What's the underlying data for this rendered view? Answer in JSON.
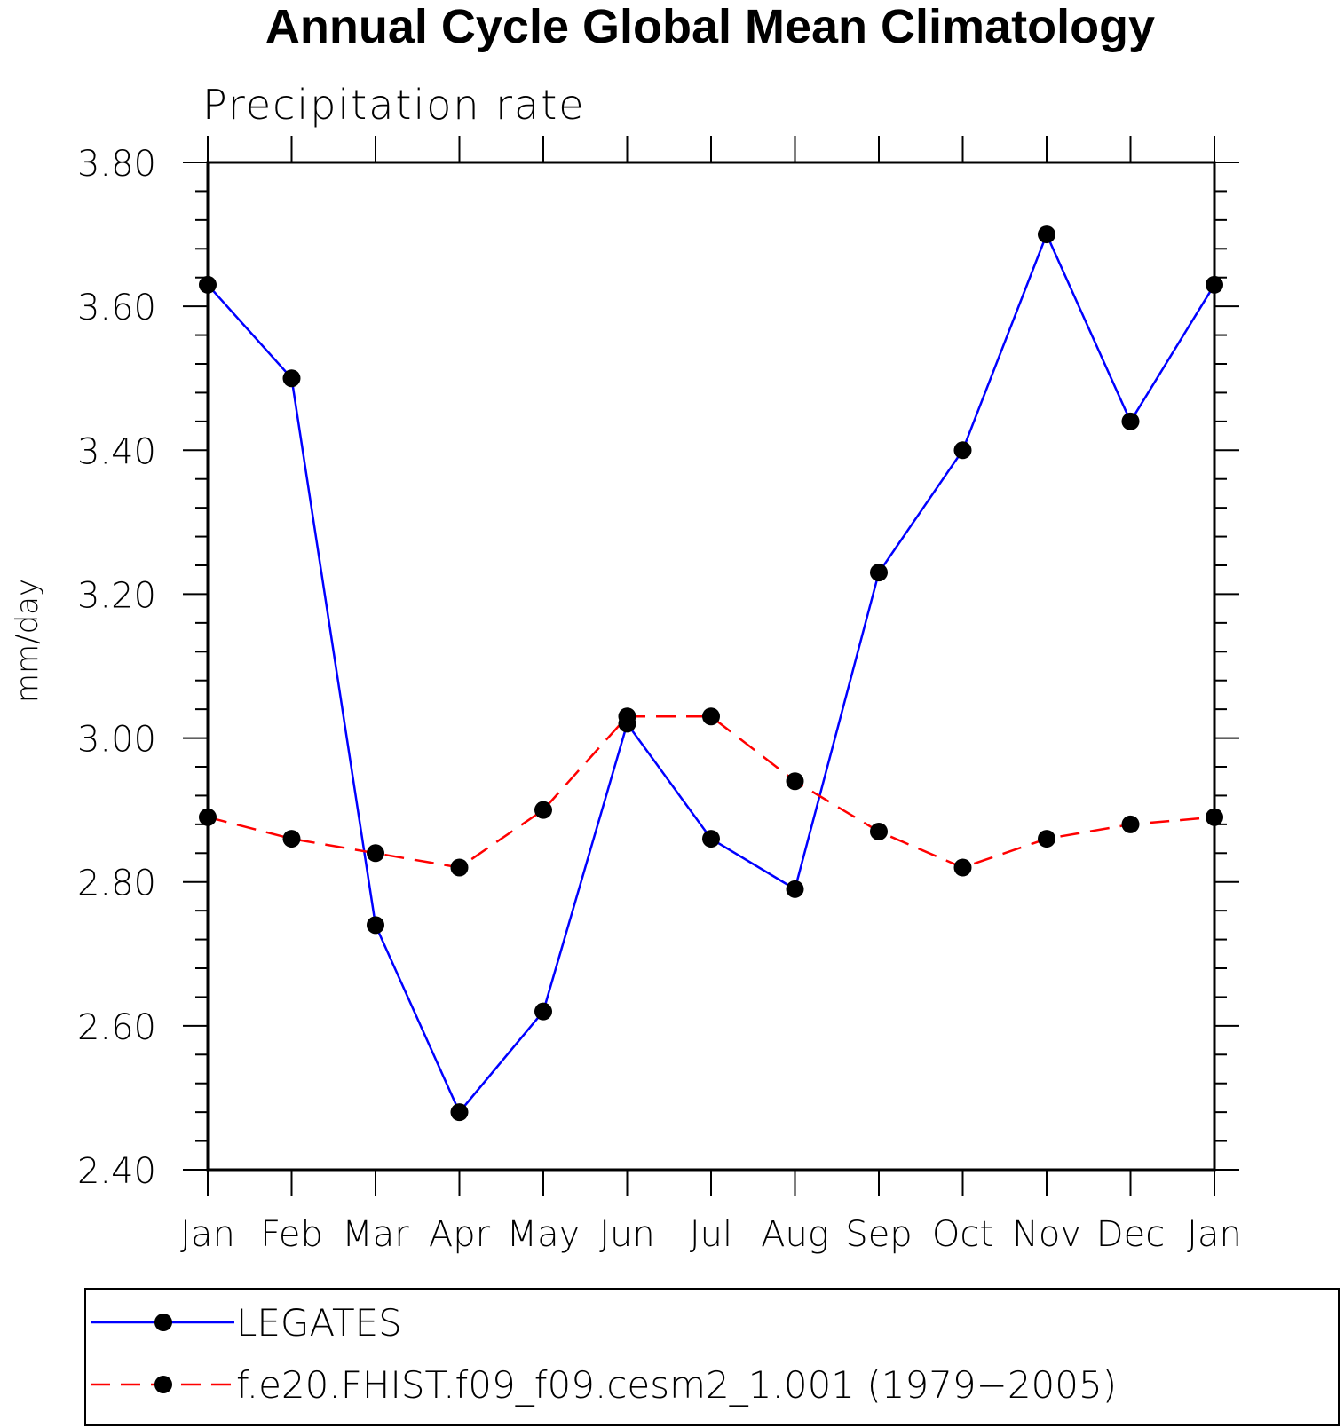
{
  "chart_data": {
    "type": "line",
    "title": "Annual Cycle Global Mean Climatology",
    "subtitle": "Precipitation rate",
    "ylabel": "mm/day",
    "xlabel": "",
    "categories": [
      "Jan",
      "Feb",
      "Mar",
      "Apr",
      "May",
      "Jun",
      "Jul",
      "Aug",
      "Sep",
      "Oct",
      "Nov",
      "Dec",
      "Jan"
    ],
    "ylim": [
      2.4,
      3.8
    ],
    "yticks": [
      "2.40",
      "2.60",
      "2.80",
      "3.00",
      "3.20",
      "3.40",
      "3.60",
      "3.80"
    ],
    "series": [
      {
        "name": "LEGATES",
        "color": "#0000ff",
        "dash": "solid",
        "marker": "filled-circle",
        "values": [
          3.63,
          3.5,
          2.74,
          2.48,
          2.62,
          3.02,
          2.86,
          2.79,
          3.23,
          3.4,
          3.7,
          3.44,
          3.63
        ]
      },
      {
        "name": "f.e20.FHIST.f09_f09.cesm2_1.001 (1979−2005)",
        "color": "#ff0000",
        "dash": "dashed",
        "marker": "filled-circle",
        "values": [
          2.89,
          2.86,
          2.84,
          2.82,
          2.9,
          3.03,
          3.03,
          2.94,
          2.87,
          2.82,
          2.86,
          2.88,
          2.89
        ]
      }
    ],
    "grid": false,
    "legend": "bottom"
  }
}
